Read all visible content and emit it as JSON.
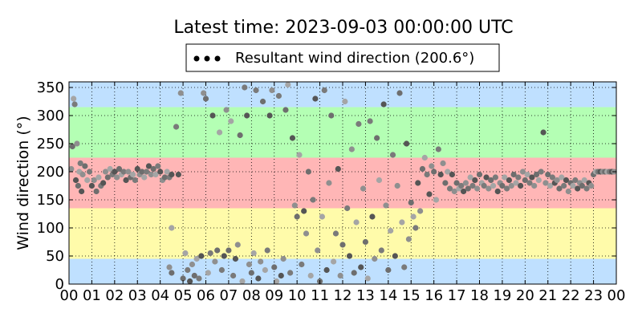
{
  "chart_data": {
    "type": "scatter",
    "title": "Latest time: 2023-09-03 00:00:00 UTC",
    "xlabel": "",
    "ylabel": "Wind direction (°)",
    "xlim": [
      0,
      24
    ],
    "ylim": [
      0,
      360
    ],
    "x_ticks": [
      0,
      1,
      2,
      3,
      4,
      5,
      6,
      7,
      8,
      9,
      10,
      11,
      12,
      13,
      14,
      15,
      16,
      17,
      18,
      19,
      20,
      21,
      22,
      23,
      24
    ],
    "x_tick_labels": [
      "00",
      "01",
      "02",
      "03",
      "04",
      "05",
      "06",
      "07",
      "08",
      "09",
      "10",
      "11",
      "12",
      "13",
      "14",
      "15",
      "16",
      "17",
      "18",
      "19",
      "20",
      "21",
      "22",
      "23",
      "00"
    ],
    "y_ticks": [
      0,
      50,
      100,
      150,
      200,
      250,
      300,
      350
    ],
    "y_tick_labels": [
      "0",
      "50",
      "100",
      "150",
      "200",
      "250",
      "300",
      "350"
    ],
    "grid": true,
    "legend": {
      "position": "top-center",
      "entries": [
        "Resultant wind direction (200.6°)"
      ]
    },
    "bands": [
      {
        "from": 0,
        "to": 45,
        "color": "#bfe0ff"
      },
      {
        "from": 45,
        "to": 135,
        "color": "#fffbaa"
      },
      {
        "from": 135,
        "to": 225,
        "color": "#ffb6b6"
      },
      {
        "from": 225,
        "to": 315,
        "color": "#b4ffb4"
      },
      {
        "from": 315,
        "to": 360,
        "color": "#bfe0ff"
      }
    ],
    "marker_colors": [
      "#8f8f8f",
      "#6e6e6e",
      "#a5a5a5",
      "#7a7a7a",
      "#555555"
    ],
    "series": [
      {
        "name": "Resultant wind direction (200.6°)",
        "points": [
          [
            0.1,
            205
          ],
          [
            0.15,
            245
          ],
          [
            0.2,
            330
          ],
          [
            0.25,
            320
          ],
          [
            0.3,
            185
          ],
          [
            0.35,
            250
          ],
          [
            0.4,
            175
          ],
          [
            0.45,
            200
          ],
          [
            0.5,
            215
          ],
          [
            0.55,
            165
          ],
          [
            0.6,
            195
          ],
          [
            0.7,
            210
          ],
          [
            0.8,
            185
          ],
          [
            0.9,
            200
          ],
          [
            1.0,
            175
          ],
          [
            1.1,
            185
          ],
          [
            1.2,
            165
          ],
          [
            1.3,
            190
          ],
          [
            1.4,
            175
          ],
          [
            1.5,
            180
          ],
          [
            1.6,
            200
          ],
          [
            1.7,
            190
          ],
          [
            1.8,
            205
          ],
          [
            1.9,
            195
          ],
          [
            2.0,
            200
          ],
          [
            2.1,
            190
          ],
          [
            2.2,
            205
          ],
          [
            2.3,
            195
          ],
          [
            2.4,
            200
          ],
          [
            2.5,
            185
          ],
          [
            2.6,
            200
          ],
          [
            2.7,
            190
          ],
          [
            2.8,
            195
          ],
          [
            2.9,
            185
          ],
          [
            3.0,
            205
          ],
          [
            3.1,
            195
          ],
          [
            3.2,
            200
          ],
          [
            3.3,
            190
          ],
          [
            3.4,
            200
          ],
          [
            3.5,
            210
          ],
          [
            3.6,
            195
          ],
          [
            3.7,
            205
          ],
          [
            3.8,
            195
          ],
          [
            3.9,
            210
          ],
          [
            4.0,
            200
          ],
          [
            4.1,
            185
          ],
          [
            4.2,
            190
          ],
          [
            4.3,
            200
          ],
          [
            4.4,
            190
          ],
          [
            4.5,
            195
          ],
          [
            4.4,
            30
          ],
          [
            4.5,
            20
          ],
          [
            4.5,
            100
          ],
          [
            4.7,
            280
          ],
          [
            4.8,
            195
          ],
          [
            4.9,
            340
          ],
          [
            5.0,
            10
          ],
          [
            5.1,
            55
          ],
          [
            5.2,
            25
          ],
          [
            5.3,
            5
          ],
          [
            5.4,
            35
          ],
          [
            5.5,
            15
          ],
          [
            5.6,
            45
          ],
          [
            5.7,
            10
          ],
          [
            5.8,
            50
          ],
          [
            5.9,
            340
          ],
          [
            6.0,
            330
          ],
          [
            6.1,
            20
          ],
          [
            6.2,
            55
          ],
          [
            6.3,
            300
          ],
          [
            6.4,
            40
          ],
          [
            6.5,
            60
          ],
          [
            6.6,
            270
          ],
          [
            6.7,
            25
          ],
          [
            6.8,
            50
          ],
          [
            6.9,
            310
          ],
          [
            7.0,
            60
          ],
          [
            7.1,
            290
          ],
          [
            7.2,
            15
          ],
          [
            7.3,
            45
          ],
          [
            7.4,
            70
          ],
          [
            7.5,
            265
          ],
          [
            7.6,
            5
          ],
          [
            7.7,
            350
          ],
          [
            7.8,
            300
          ],
          [
            7.9,
            35
          ],
          [
            8.0,
            20
          ],
          [
            8.1,
            55
          ],
          [
            8.2,
            345
          ],
          [
            8.3,
            10
          ],
          [
            8.4,
            40
          ],
          [
            8.5,
            325
          ],
          [
            8.6,
            25
          ],
          [
            8.7,
            60
          ],
          [
            8.8,
            300
          ],
          [
            8.9,
            345
          ],
          [
            9.0,
            30
          ],
          [
            9.1,
            5
          ],
          [
            9.2,
            335
          ],
          [
            9.3,
            15
          ],
          [
            9.4,
            45
          ],
          [
            9.5,
            310
          ],
          [
            9.6,
            355
          ],
          [
            9.7,
            20
          ],
          [
            9.8,
            260
          ],
          [
            9.9,
            140
          ],
          [
            10.0,
            120
          ],
          [
            10.1,
            230
          ],
          [
            10.2,
            35
          ],
          [
            10.3,
            130
          ],
          [
            10.4,
            90
          ],
          [
            10.5,
            200
          ],
          [
            10.6,
            15
          ],
          [
            10.7,
            150
          ],
          [
            10.8,
            330
          ],
          [
            10.9,
            60
          ],
          [
            11.0,
            5
          ],
          [
            11.1,
            120
          ],
          [
            11.2,
            345
          ],
          [
            11.3,
            25
          ],
          [
            11.4,
            180
          ],
          [
            11.5,
            300
          ],
          [
            11.6,
            40
          ],
          [
            11.7,
            90
          ],
          [
            11.8,
            205
          ],
          [
            11.9,
            15
          ],
          [
            12.0,
            70
          ],
          [
            12.1,
            325
          ],
          [
            12.2,
            135
          ],
          [
            12.3,
            50
          ],
          [
            12.4,
            240
          ],
          [
            12.5,
            20
          ],
          [
            12.6,
            110
          ],
          [
            12.7,
            285
          ],
          [
            12.8,
            30
          ],
          [
            12.9,
            170
          ],
          [
            13.0,
            75
          ],
          [
            13.1,
            10
          ],
          [
            13.2,
            290
          ],
          [
            13.3,
            120
          ],
          [
            13.4,
            45
          ],
          [
            13.5,
            260
          ],
          [
            13.6,
            185
          ],
          [
            13.7,
            60
          ],
          [
            13.8,
            320
          ],
          [
            13.9,
            140
          ],
          [
            14.0,
            25
          ],
          [
            14.1,
            95
          ],
          [
            14.2,
            230
          ],
          [
            14.3,
            50
          ],
          [
            14.4,
            175
          ],
          [
            14.5,
            340
          ],
          [
            14.6,
            110
          ],
          [
            14.7,
            30
          ],
          [
            14.8,
            250
          ],
          [
            14.9,
            80
          ],
          [
            15.0,
            145
          ],
          [
            15.1,
            120
          ],
          [
            15.2,
            100
          ],
          [
            15.3,
            180
          ],
          [
            15.4,
            130
          ],
          [
            15.5,
            205
          ],
          [
            15.6,
            225
          ],
          [
            15.7,
            195
          ],
          [
            15.8,
            160
          ],
          [
            15.9,
            210
          ],
          [
            16.0,
            200
          ],
          [
            16.1,
            150
          ],
          [
            16.2,
            240
          ],
          [
            16.3,
            195
          ],
          [
            16.4,
            215
          ],
          [
            16.5,
            180
          ],
          [
            16.6,
            200
          ],
          [
            16.7,
            170
          ],
          [
            16.8,
            195
          ],
          [
            16.9,
            165
          ],
          [
            17.0,
            180
          ],
          [
            17.1,
            170
          ],
          [
            17.2,
            175
          ],
          [
            17.3,
            165
          ],
          [
            17.4,
            180
          ],
          [
            17.5,
            170
          ],
          [
            17.6,
            190
          ],
          [
            17.7,
            175
          ],
          [
            17.8,
            185
          ],
          [
            17.9,
            170
          ],
          [
            18.0,
            195
          ],
          [
            18.1,
            180
          ],
          [
            18.2,
            175
          ],
          [
            18.3,
            190
          ],
          [
            18.4,
            170
          ],
          [
            18.5,
            185
          ],
          [
            18.6,
            175
          ],
          [
            18.7,
            190
          ],
          [
            18.8,
            165
          ],
          [
            18.9,
            180
          ],
          [
            19.0,
            175
          ],
          [
            19.1,
            190
          ],
          [
            19.2,
            170
          ],
          [
            19.3,
            185
          ],
          [
            19.4,
            175
          ],
          [
            19.5,
            195
          ],
          [
            19.6,
            180
          ],
          [
            19.7,
            190
          ],
          [
            19.8,
            175
          ],
          [
            19.9,
            200
          ],
          [
            20.0,
            185
          ],
          [
            20.1,
            195
          ],
          [
            20.2,
            180
          ],
          [
            20.3,
            190
          ],
          [
            20.4,
            175
          ],
          [
            20.5,
            195
          ],
          [
            20.6,
            185
          ],
          [
            20.7,
            200
          ],
          [
            20.8,
            270
          ],
          [
            20.9,
            180
          ],
          [
            21.0,
            195
          ],
          [
            21.1,
            175
          ],
          [
            21.2,
            190
          ],
          [
            21.3,
            180
          ],
          [
            21.4,
            185
          ],
          [
            21.5,
            170
          ],
          [
            21.6,
            190
          ],
          [
            21.7,
            175
          ],
          [
            21.8,
            185
          ],
          [
            21.9,
            165
          ],
          [
            22.0,
            180
          ],
          [
            22.1,
            175
          ],
          [
            22.2,
            185
          ],
          [
            22.3,
            170
          ],
          [
            22.4,
            180
          ],
          [
            22.5,
            175
          ],
          [
            22.6,
            185
          ],
          [
            22.7,
            170
          ],
          [
            22.8,
            180
          ],
          [
            22.9,
            175
          ],
          [
            23.0,
            195
          ],
          [
            23.1,
            200
          ],
          [
            23.2,
            200
          ],
          [
            23.3,
            200
          ],
          [
            23.4,
            200
          ],
          [
            23.5,
            200
          ],
          [
            23.6,
            200
          ],
          [
            23.7,
            200
          ],
          [
            23.8,
            200
          ],
          [
            23.9,
            200
          ]
        ]
      }
    ]
  }
}
